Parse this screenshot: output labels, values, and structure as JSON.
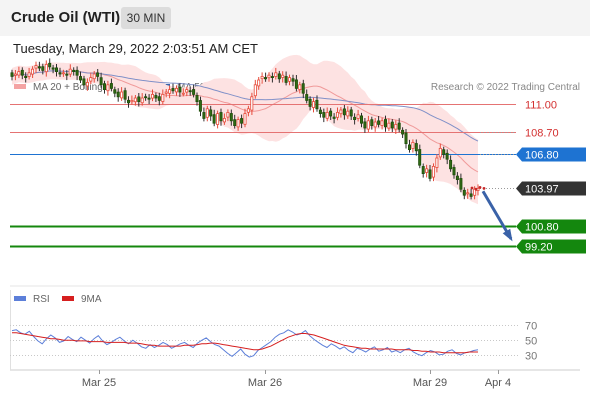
{
  "header": {
    "instrument": "Crude Oil (WTI)",
    "interval": "30 MIN"
  },
  "timestamp": "Tuesday, March 29, 2022 2:03:51 AM CET",
  "chart_data": [
    {
      "type": "candlestick",
      "legend": [
        {
          "name": "MA 20 + Bollinger Bands",
          "color": "#f4a3a3"
        },
        {
          "name": "MA 50",
          "color": "#3a62a8"
        }
      ],
      "credit": "Research © 2022 Trading Central",
      "ylim": [
        97.5,
        116
      ],
      "price_levels": [
        {
          "label": "111.00",
          "value": 111.0,
          "kind": "resistance",
          "color": "#e57373"
        },
        {
          "label": "108.70",
          "value": 108.7,
          "kind": "resistance",
          "color": "#e57373"
        },
        {
          "label": "106.80",
          "value": 106.8,
          "kind": "pivot",
          "color": "#1e73d2"
        },
        {
          "label": "103.97",
          "value": 103.97,
          "kind": "last_price",
          "color": "#333333"
        },
        {
          "label": "100.80",
          "value": 100.8,
          "kind": "target",
          "color": "#14870e"
        },
        {
          "label": "99.20",
          "value": 99.2,
          "kind": "target",
          "color": "#14870e"
        }
      ],
      "forecast_arrow": {
        "from": 103.9,
        "to": 99.6,
        "direction": "down",
        "color": "#3a62a8"
      },
      "close": [
        113.3,
        113.5,
        113.7,
        113.4,
        113.2,
        113.6,
        113.9,
        114.2,
        114.0,
        113.8,
        114.3,
        114.1,
        113.9,
        113.7,
        113.5,
        113.6,
        113.4,
        113.9,
        113.7,
        113.4,
        113.0,
        112.6,
        112.8,
        113.2,
        113.5,
        113.3,
        112.6,
        112.2,
        112.6,
        112.3,
        111.9,
        111.6,
        112.0,
        111.4,
        111.1,
        111.3,
        111.5,
        111.2,
        111.5,
        111.6,
        111.4,
        111.8,
        111.5,
        111.3,
        111.8,
        112.0,
        112.2,
        112.1,
        112.3,
        112.0,
        111.9,
        112.2,
        112.1,
        111.8,
        111.2,
        110.4,
        109.8,
        110.6,
        110.0,
        109.4,
        110.2,
        109.6,
        109.8,
        110.3,
        109.6,
        109.2,
        109.7,
        109.4,
        110.2,
        110.6,
        111.6,
        112.6,
        113.0,
        113.3,
        113.1,
        113.4,
        113.2,
        113.6,
        113.1,
        113.4,
        112.8,
        113.2,
        112.9,
        112.3,
        112.6,
        111.9,
        111.3,
        110.8,
        111.2,
        110.6,
        110.2,
        109.9,
        110.3,
        110.0,
        109.8,
        110.3,
        110.5,
        110.1,
        110.4,
        110.0,
        109.7,
        110.1,
        109.4,
        109.0,
        109.6,
        109.2,
        109.5,
        109.3,
        109.6,
        109.1,
        109.4,
        109.0,
        109.3,
        108.9,
        108.5,
        107.7,
        107.2,
        107.8,
        107.1,
        105.9,
        105.2,
        105.6,
        104.8,
        105.8,
        106.5,
        107.3,
        106.8,
        106.4,
        105.6,
        105.1,
        104.7,
        103.9,
        103.4,
        103.6,
        103.3,
        103.9,
        103.97
      ],
      "open_offset": [
        -0.35,
        0.3,
        -0.3,
        0.35,
        -0.3,
        0.3,
        -0.35,
        0.3,
        -0.3,
        0.35
      ],
      "extra_markers": [
        104.0,
        103.9,
        104.05,
        103.97
      ]
    },
    {
      "type": "line",
      "title": "",
      "legend": [
        {
          "name": "RSI",
          "color": "#5c7fd9"
        },
        {
          "name": "9MA",
          "color": "#d61f1f"
        }
      ],
      "ticks": [
        "70",
        "50",
        "30"
      ],
      "ylim": [
        15,
        80
      ],
      "rsi": [
        63,
        64,
        60,
        58,
        62,
        55,
        49,
        45,
        52,
        57,
        53,
        47,
        49,
        55,
        51,
        48,
        54,
        50,
        46,
        52,
        56,
        49,
        44,
        47,
        51,
        54,
        49,
        45,
        50,
        46,
        41,
        39,
        44,
        40,
        43,
        47,
        44,
        39,
        42,
        45,
        47,
        43,
        40,
        46,
        50,
        53,
        48,
        44,
        42,
        37,
        32,
        28,
        33,
        38,
        31,
        27,
        29,
        36,
        40,
        44,
        48,
        54,
        58,
        60,
        64,
        61,
        57,
        59,
        63,
        56,
        51,
        47,
        43,
        40,
        45,
        42,
        38,
        41,
        36,
        33,
        39,
        37,
        34,
        38,
        41,
        35,
        37,
        40,
        34,
        36,
        33,
        37,
        39,
        34,
        31,
        29,
        33,
        36,
        34,
        30,
        31,
        35,
        37,
        32,
        30,
        33,
        34,
        36,
        37
      ],
      "ma9": [
        60,
        60,
        59,
        58,
        57,
        56,
        55,
        54,
        53,
        52,
        52,
        51,
        50,
        50,
        50,
        49,
        49,
        49,
        48,
        48,
        48,
        48,
        47,
        47,
        47,
        47,
        47,
        46,
        46,
        46,
        45,
        44,
        43,
        43,
        42,
        42,
        42,
        42,
        42,
        42,
        43,
        43,
        43,
        44,
        45,
        45,
        46,
        46,
        45,
        44,
        43,
        42,
        41,
        40,
        39,
        38,
        37,
        37,
        38,
        40,
        42,
        45,
        48,
        51,
        54,
        56,
        58,
        59,
        59,
        58,
        57,
        55,
        53,
        51,
        49,
        47,
        45,
        43,
        42,
        41,
        40,
        39,
        39,
        38,
        38,
        38,
        38,
        38,
        38,
        37,
        37,
        37,
        37,
        36,
        36,
        35,
        35,
        34,
        34,
        34,
        33,
        33,
        33,
        33,
        33,
        33,
        34,
        34,
        34
      ],
      "x_ticks": [
        "Mar 25",
        "Mar 26",
        "Mar 29",
        "Apr 4"
      ]
    }
  ]
}
